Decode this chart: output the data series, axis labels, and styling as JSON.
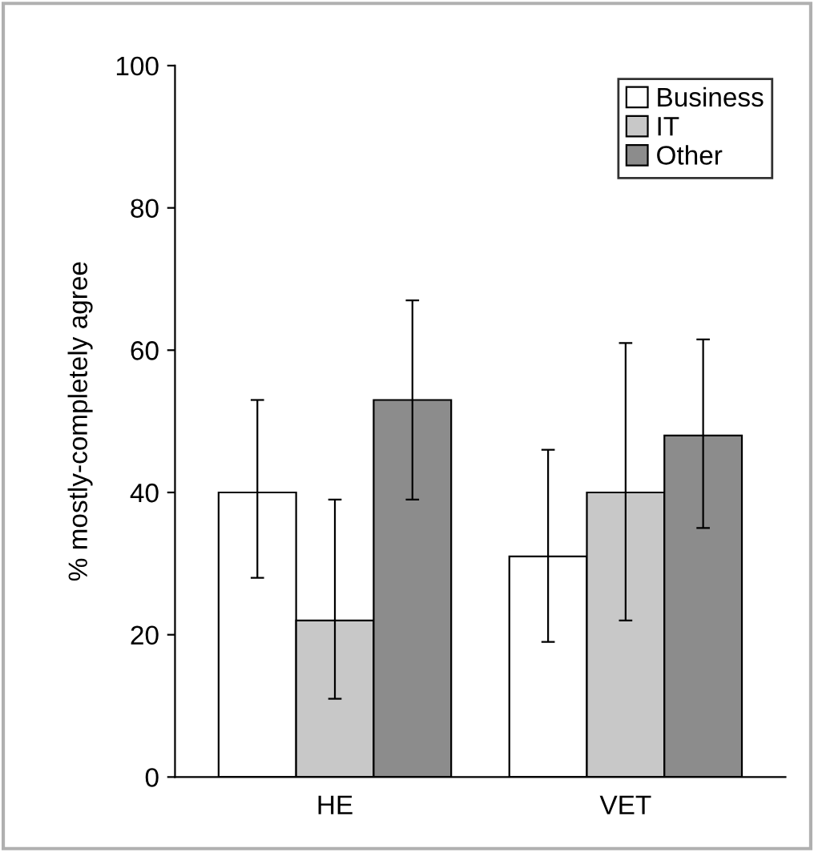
{
  "chart_data": {
    "type": "bar",
    "ylabel": "% mostly-completely agree",
    "categories": [
      "HE",
      "VET"
    ],
    "series": [
      {
        "name": "Business",
        "color": "#ffffff",
        "values": [
          40,
          31
        ],
        "errors": [
          [
            28,
            53
          ],
          [
            19,
            46
          ]
        ]
      },
      {
        "name": "IT",
        "color": "#c8c8c8",
        "values": [
          22,
          40
        ],
        "errors": [
          [
            11,
            39
          ],
          [
            22,
            61
          ]
        ]
      },
      {
        "name": "Other",
        "color": "#8c8c8c",
        "values": [
          53,
          48
        ],
        "errors": [
          [
            39,
            67
          ],
          [
            35,
            61.5
          ]
        ]
      }
    ],
    "ylim": [
      0,
      100
    ],
    "yticks": [
      0,
      20,
      40,
      60,
      80,
      100
    ],
    "grid": false,
    "legend": "top right"
  }
}
